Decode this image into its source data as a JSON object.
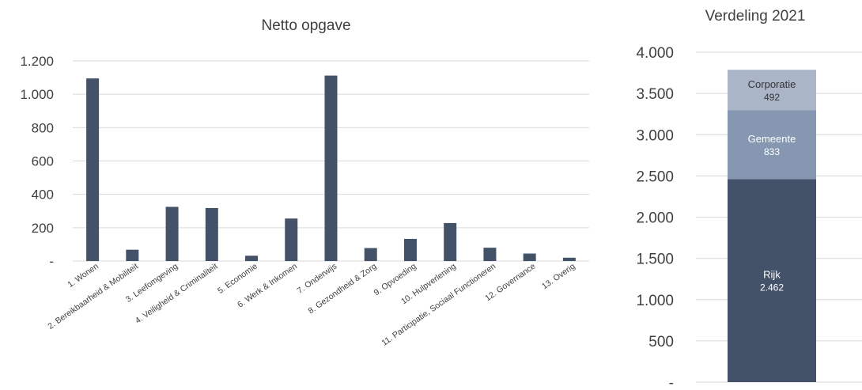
{
  "chart_data": [
    {
      "type": "bar",
      "title": "Netto opgave",
      "categories": [
        "1. Wonen",
        "2. Bereikbaarheid & Mobiliteit",
        "3. Leefomgeving",
        "4. Veiligheid & Criminaliteit",
        "5. Economie",
        "6. Werk & Inkomen",
        "7. Onderwijs",
        "8. Gezondheid & Zorg",
        "9. Opvoeding",
        "10. Hulpverlening",
        "11. Participatie, Sociaal Functioneren",
        "12. Governance",
        "13. Overig"
      ],
      "values": [
        1095,
        68,
        325,
        318,
        32,
        255,
        1112,
        78,
        133,
        228,
        80,
        45,
        20
      ],
      "ylim": [
        0,
        1200
      ],
      "yticks": [
        0,
        200,
        400,
        600,
        800,
        1000,
        1200
      ],
      "ytick_labels": [
        "-",
        "200",
        "400",
        "600",
        "800",
        "1.000",
        "1.200"
      ],
      "grid": true,
      "bar_color": "#435169"
    },
    {
      "type": "bar",
      "stacked": true,
      "title": "Verdeling 2021",
      "ylim": [
        0,
        4000
      ],
      "yticks": [
        0,
        500,
        1000,
        1500,
        2000,
        2500,
        3000,
        3500,
        4000
      ],
      "ytick_labels": [
        "-",
        "500",
        "1.000",
        "1.500",
        "2.000",
        "2.500",
        "3.000",
        "3.500",
        "4.000"
      ],
      "grid": true,
      "series": [
        {
          "name": "Rijk",
          "value": 2462,
          "value_label": "2.462",
          "color": "#435169"
        },
        {
          "name": "Gemeente",
          "value": 833,
          "value_label": "833",
          "color": "#8597b1"
        },
        {
          "name": "Corporatie",
          "value": 492,
          "value_label": "492",
          "color": "#aab5c8"
        }
      ]
    }
  ]
}
